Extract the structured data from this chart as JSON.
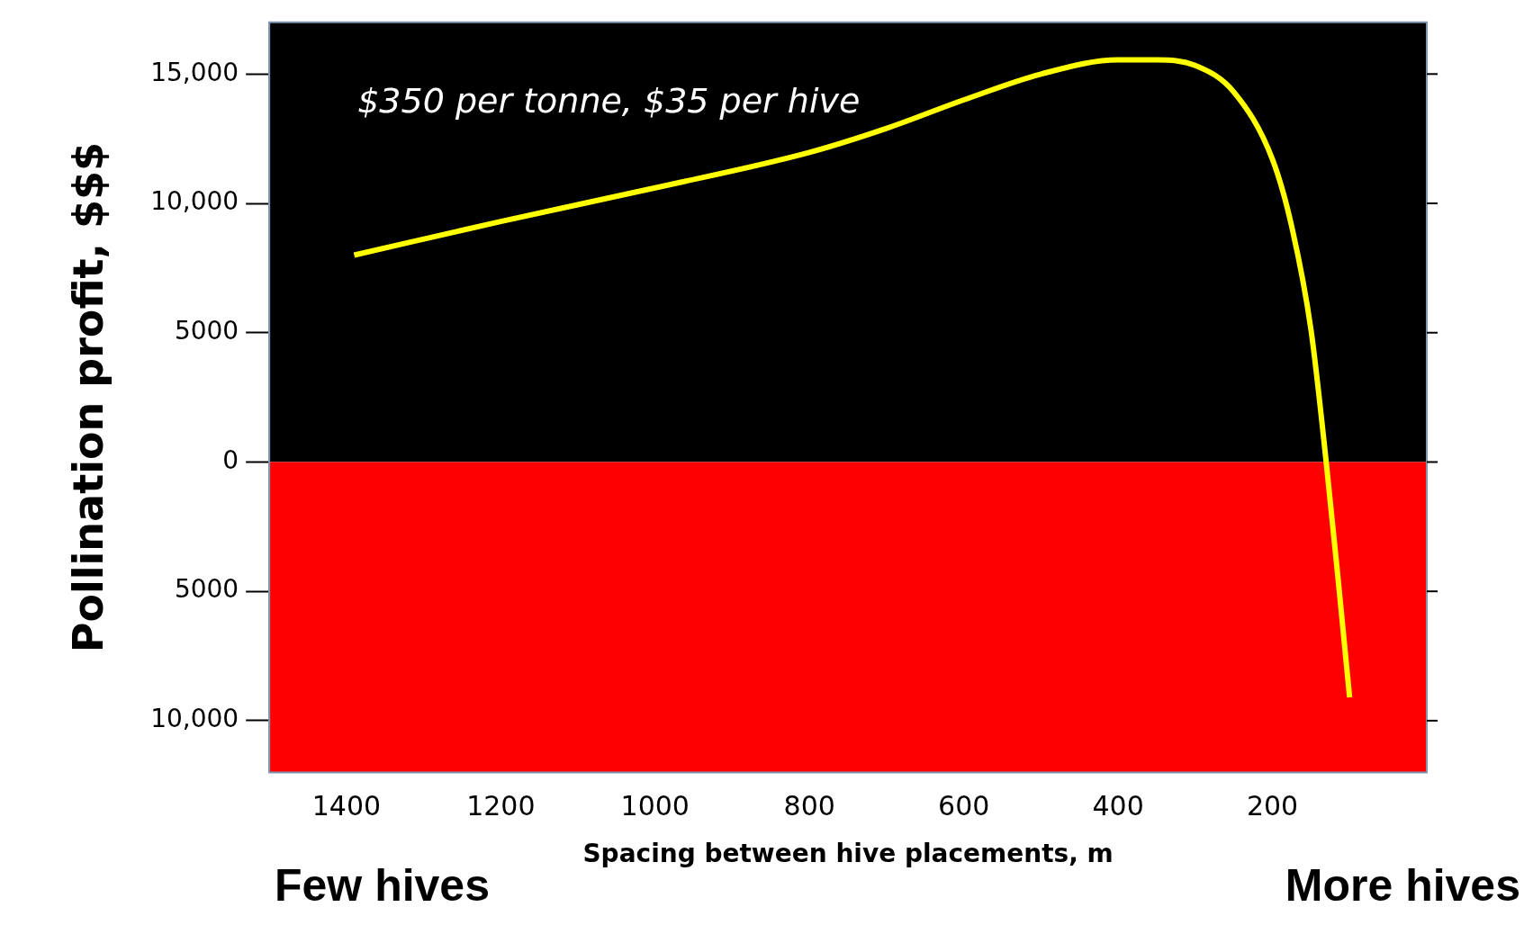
{
  "chart_data": {
    "type": "line",
    "xlabel": "Spacing between hive placements, m",
    "ylabel": "Pollination profit, $$$",
    "x": [
      1390,
      1200,
      1000,
      800,
      700,
      600,
      500,
      400,
      350,
      300,
      250,
      200,
      175,
      150,
      130,
      115,
      100
    ],
    "series": [
      {
        "color": "#ffff00",
        "values": [
          8000,
          9300,
          10600,
          11970,
          12900,
          14000,
          15000,
          15550,
          15550,
          15330,
          14300,
          11700,
          9100,
          5100,
          -100,
          -4500,
          -9100
        ]
      }
    ],
    "xlim": [
      1500,
      0
    ],
    "xticks": [
      1400,
      1200,
      1000,
      800,
      600,
      400,
      200
    ],
    "ylim": [
      -12000,
      17000
    ],
    "yticks": [
      {
        "value": -10000,
        "label": "10,000"
      },
      {
        "value": -5000,
        "label": "5000"
      },
      0,
      5000,
      {
        "value": 10000,
        "label": "10,000"
      },
      {
        "value": 15000,
        "label": "15,000"
      }
    ],
    "bands": [
      {
        "axis": "y",
        "from": 0,
        "to": 17000,
        "color": "#000000"
      },
      {
        "axis": "y",
        "from": -12000,
        "to": 0,
        "color": "#ff0000"
      }
    ],
    "annotations": [
      "$350 per tonne, $35 per hive",
      "Few hives",
      "More hives"
    ],
    "grid": false,
    "legend": false,
    "marker": "none",
    "line_style": "solid"
  }
}
